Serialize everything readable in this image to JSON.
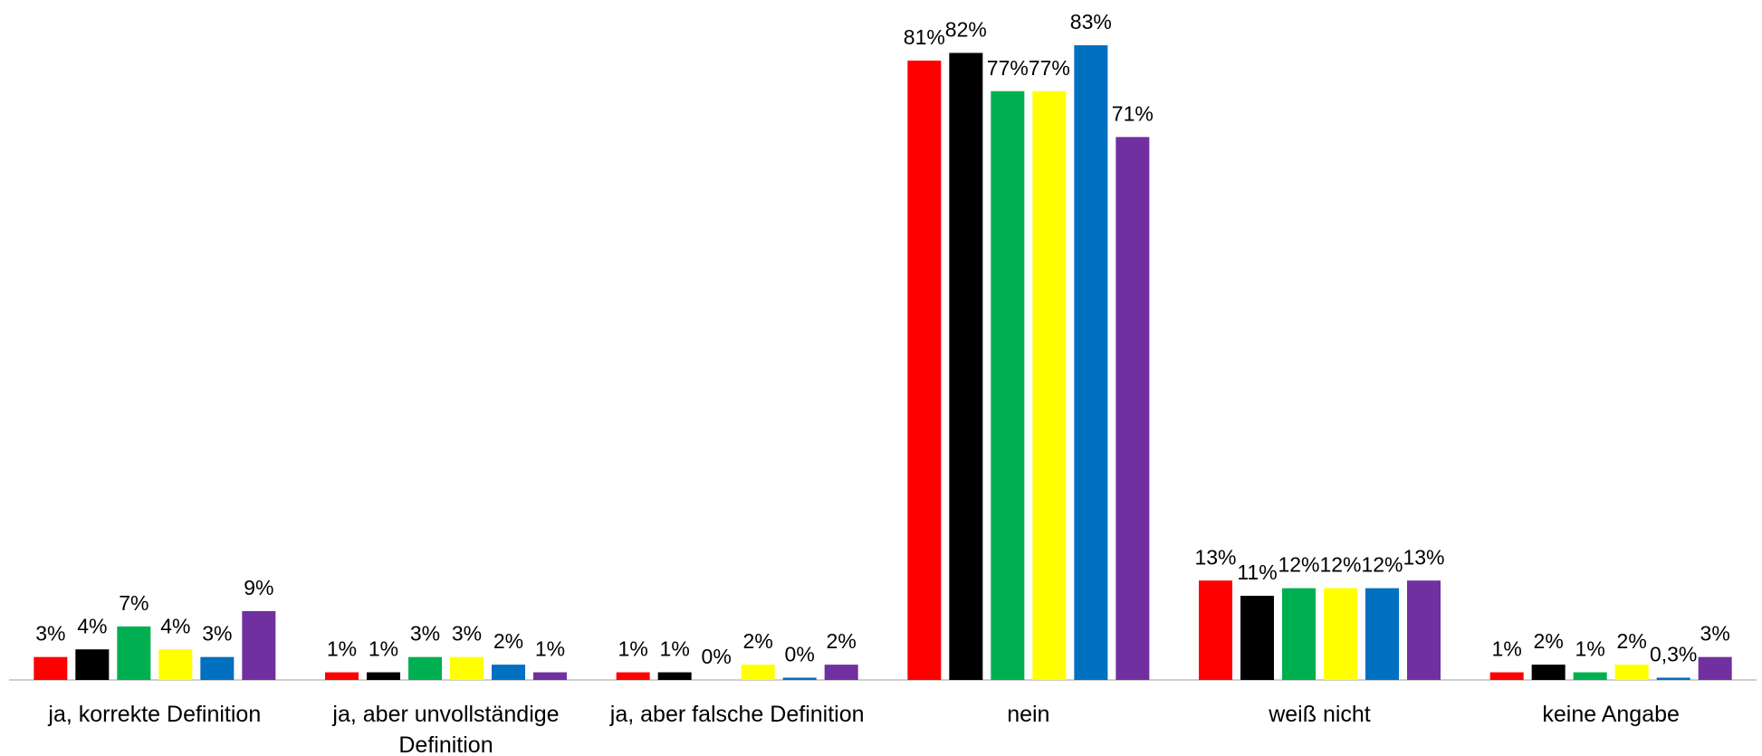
{
  "chart_data": {
    "type": "bar",
    "categories": [
      "ja, korrekte Definition",
      "ja, aber unvollständige Definition",
      "ja, aber falsche Definition",
      "nein",
      "weiß nicht",
      "keine Angabe"
    ],
    "series": [
      {
        "color": "#ff0000",
        "values": [
          3,
          1,
          1,
          81,
          13,
          1
        ],
        "value_labels": [
          "3%",
          "1%",
          "1%",
          "81%",
          "13%",
          "1%"
        ]
      },
      {
        "color": "#000000",
        "values": [
          4,
          1,
          1,
          82,
          11,
          2
        ],
        "value_labels": [
          "4%",
          "1%",
          "1%",
          "82%",
          "11%",
          "2%"
        ]
      },
      {
        "color": "#00b050",
        "values": [
          7,
          3,
          0,
          77,
          12,
          1
        ],
        "value_labels": [
          "7%",
          "3%",
          "0%",
          "77%",
          "12%",
          "1%"
        ]
      },
      {
        "color": "#ffff00",
        "values": [
          4,
          3,
          2,
          77,
          12,
          2
        ],
        "value_labels": [
          "4%",
          "3%",
          "2%",
          "77%",
          "12%",
          "2%"
        ]
      },
      {
        "color": "#0070c0",
        "values": [
          3,
          2,
          0.3,
          83,
          12,
          0.3
        ],
        "value_labels": [
          "3%",
          "2%",
          "0%",
          "83%",
          "12%",
          "0,3%"
        ]
      },
      {
        "color": "#7030a0",
        "values": [
          9,
          1,
          2,
          71,
          13,
          3
        ],
        "value_labels": [
          "9%",
          "1%",
          "2%",
          "71%",
          "13%",
          "3%"
        ]
      }
    ]
  }
}
